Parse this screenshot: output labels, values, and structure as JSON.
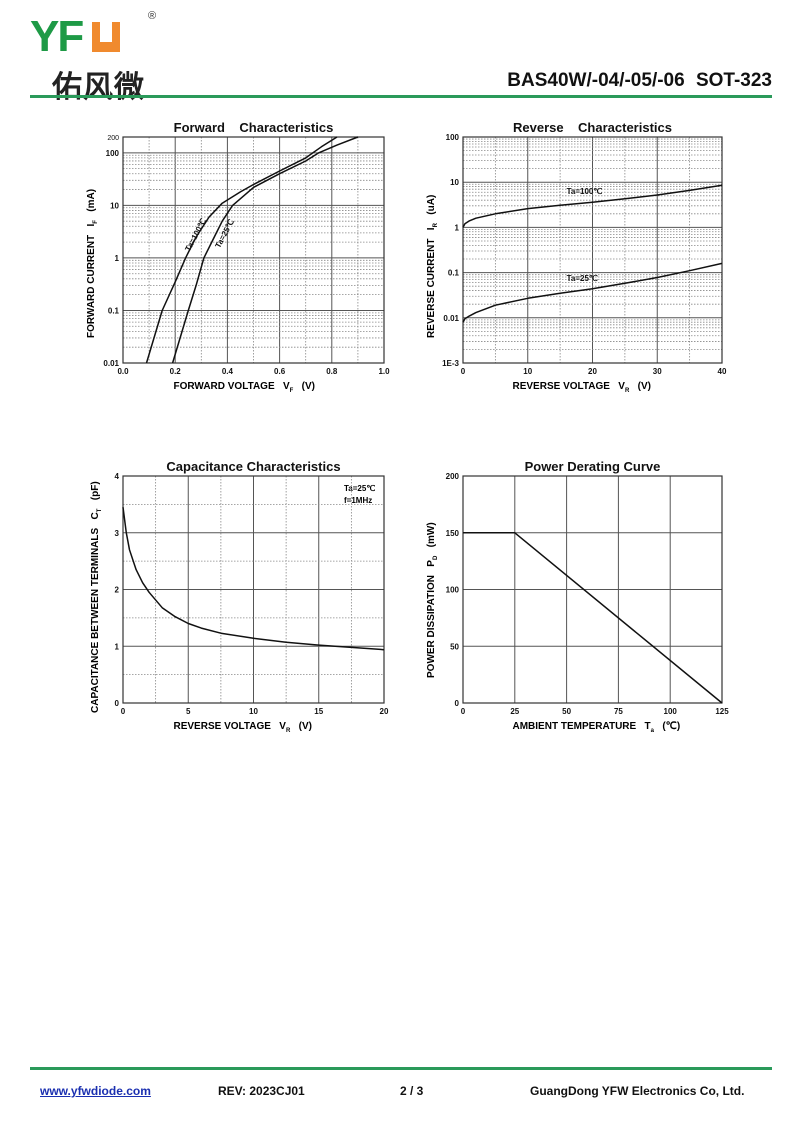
{
  "header": {
    "logo_text": "YFW",
    "logo_cn": "佑风微",
    "registered": "®",
    "part": "BAS40W/-04/-05/-06   SOT-323"
  },
  "footer": {
    "website": "www.yfwdiode.com",
    "rev": "REV: 2023CJ01",
    "page": "2 / 3",
    "company": "GuangDong YFW Electronics Co, Ltd."
  },
  "colors": {
    "green": "#1e9a46",
    "orange": "#f08a2e",
    "rule": "#2a9a5a"
  },
  "chart_data": [
    {
      "type": "line",
      "title": "Forward    Characteristics",
      "xlabel": "FORWARD VOLTAGE",
      "xsym": "V",
      "xsub": "F",
      "xunit": "(V)",
      "ylabel": "FORWARD CURRENT",
      "ysym": "I",
      "ysub": "F",
      "yunit": "(mA)",
      "yscale": "log",
      "xlim": [
        0,
        1.0
      ],
      "ylim": [
        0.01,
        200
      ],
      "xticks": [
        "0.0",
        "0.2",
        "0.4",
        "0.6",
        "0.8",
        "1.0"
      ],
      "yticks": [
        "0.01",
        "0.1",
        "1",
        "10",
        "100",
        "200"
      ],
      "series": [
        {
          "name": "Ta=100℃",
          "x": [
            0.09,
            0.15,
            0.2,
            0.24,
            0.28,
            0.33,
            0.38,
            0.45,
            0.5,
            0.6,
            0.7,
            0.76,
            0.82
          ],
          "y": [
            0.01,
            0.1,
            0.35,
            1,
            2.5,
            6,
            11,
            18,
            25,
            45,
            80,
            130,
            200
          ]
        },
        {
          "name": "Ta=25℃",
          "x": [
            0.19,
            0.25,
            0.28,
            0.31,
            0.35,
            0.38,
            0.42,
            0.5,
            0.6,
            0.7,
            0.75,
            0.82,
            0.9
          ],
          "y": [
            0.01,
            0.1,
            0.3,
            1,
            2.5,
            5,
            10,
            22,
            40,
            70,
            100,
            140,
            200
          ]
        }
      ]
    },
    {
      "type": "line",
      "title": "Reverse    Characteristics",
      "xlabel": "REVERSE VOLTAGE",
      "xsym": "V",
      "xsub": "R",
      "xunit": "(V)",
      "ylabel": "REVERSE CURRENT",
      "ysym": "I",
      "ysub": "R",
      "yunit": "(uA)",
      "yscale": "log",
      "xlim": [
        0,
        40
      ],
      "ylim": [
        0.001,
        100
      ],
      "xticks": [
        "0",
        "10",
        "20",
        "30",
        "40"
      ],
      "yticks": [
        "1E-3",
        "0.01",
        "0.1",
        "1",
        "10",
        "100"
      ],
      "series": [
        {
          "name": "Ta=100℃",
          "x": [
            0,
            0.3,
            1,
            2,
            5,
            10,
            15,
            20,
            25,
            30,
            35,
            40
          ],
          "y": [
            1,
            1.2,
            1.4,
            1.6,
            2.0,
            2.6,
            3.1,
            3.6,
            4.3,
            5.2,
            6.6,
            8.6
          ]
        },
        {
          "name": "Ta=25℃",
          "x": [
            0,
            0.3,
            1,
            2,
            5,
            10,
            15,
            20,
            25,
            30,
            35,
            40
          ],
          "y": [
            0.008,
            0.0095,
            0.011,
            0.013,
            0.019,
            0.027,
            0.035,
            0.044,
            0.058,
            0.078,
            0.11,
            0.16
          ]
        }
      ]
    },
    {
      "type": "line",
      "title": "Capacitance Characteristics",
      "xlabel": "REVERSE VOLTAGE",
      "xsym": "V",
      "xsub": "R",
      "xunit": "(V)",
      "ylabel": "CAPACITANCE BETWEEN TERMINALS",
      "ysym": "C",
      "ysub": "T",
      "yunit": "(pF)",
      "yscale": "linear",
      "xlim": [
        0,
        20
      ],
      "ylim": [
        0,
        4
      ],
      "xticks": [
        "0",
        "5",
        "10",
        "15",
        "20"
      ],
      "yticks": [
        "0",
        "1",
        "2",
        "3",
        "4"
      ],
      "annotations": [
        "Ta=25℃",
        "f=1MHz"
      ],
      "series": [
        {
          "name": "Ct",
          "x": [
            0,
            0.25,
            0.5,
            1,
            1.5,
            2,
            3,
            4,
            5,
            6,
            7.5,
            10,
            12.5,
            15,
            17.5,
            20
          ],
          "y": [
            3.45,
            3.0,
            2.7,
            2.35,
            2.12,
            1.95,
            1.68,
            1.52,
            1.4,
            1.32,
            1.23,
            1.14,
            1.07,
            1.02,
            0.98,
            0.94
          ]
        }
      ]
    },
    {
      "type": "line",
      "title": "Power Derating Curve",
      "xlabel": "AMBIENT TEMPERATURE",
      "xsym": "T",
      "xsub": "a",
      "xunit": "(℃)",
      "ylabel": "POWER DISSIPATION",
      "ysym": "P",
      "ysub": "D",
      "yunit": "(mW)",
      "yscale": "linear",
      "xlim": [
        0,
        125
      ],
      "ylim": [
        0,
        200
      ],
      "xticks": [
        "0",
        "25",
        "50",
        "75",
        "100",
        "125"
      ],
      "yticks": [
        "0",
        "50",
        "100",
        "150",
        "200"
      ],
      "series": [
        {
          "name": "Pd",
          "x": [
            0,
            25,
            125
          ],
          "y": [
            150,
            150,
            0
          ]
        }
      ]
    }
  ]
}
